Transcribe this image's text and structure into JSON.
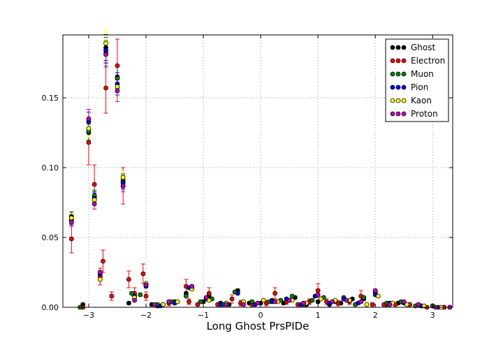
{
  "chart_data": {
    "type": "scatter",
    "title": "",
    "xlabel": "Long Ghost PrsPIDe",
    "ylabel": "",
    "xlim": [
      -3.45,
      3.35
    ],
    "ylim": [
      0,
      0.195
    ],
    "xticks": [
      -3,
      -2,
      -1,
      0,
      1,
      2,
      3
    ],
    "xtick_labels": [
      "−3",
      "−2",
      "−1",
      "0",
      "1",
      "2",
      "3"
    ],
    "yticks": [
      0,
      0.05,
      0.1,
      0.15
    ],
    "ytick_labels": [
      "0.00",
      "0.05",
      "0.10",
      "0.15"
    ],
    "grid": true,
    "legend_position": "top-right",
    "series": [
      {
        "name": "Ghost",
        "color": "#000000",
        "points": [
          [
            -3.3,
            0.065
          ],
          [
            -3.1,
            0.002
          ],
          [
            -3.0,
            0.125
          ],
          [
            -2.9,
            0.079
          ],
          [
            -2.8,
            0.025
          ],
          [
            -2.7,
            0.186
          ],
          [
            -2.5,
            0.165
          ],
          [
            -2.4,
            0.091
          ],
          [
            -2.3,
            0.003
          ],
          [
            -2.2,
            0.008
          ],
          [
            -2.0,
            0.016
          ],
          [
            -1.9,
            0.002
          ],
          [
            -1.7,
            0.002
          ],
          [
            -1.5,
            0.004
          ],
          [
            -1.3,
            0.01
          ],
          [
            -1.2,
            0.014
          ],
          [
            -1.0,
            0.004
          ],
          [
            -0.9,
            0.008
          ],
          [
            -0.7,
            0.003
          ],
          [
            -0.55,
            0.002
          ],
          [
            -0.4,
            0.012
          ],
          [
            -0.2,
            0.003
          ],
          [
            0.0,
            0.003
          ],
          [
            0.2,
            0.005
          ],
          [
            0.4,
            0.003
          ],
          [
            0.6,
            0.007
          ],
          [
            0.8,
            0.002
          ],
          [
            1.0,
            0.004
          ],
          [
            1.2,
            0.002
          ],
          [
            1.4,
            0.003
          ],
          [
            1.6,
            0.006
          ],
          [
            1.8,
            0.006
          ],
          [
            2.0,
            0.011
          ],
          [
            2.2,
            0.002
          ],
          [
            2.4,
            0.003
          ],
          [
            2.6,
            0.002
          ],
          [
            2.8,
            0.001
          ],
          [
            3.0,
            0.001
          ],
          [
            3.2,
            0.0
          ]
        ]
      },
      {
        "name": "Electron",
        "color": "#ff0000",
        "points": [
          [
            -3.3,
            0.049
          ],
          [
            -3.1,
            0.0
          ],
          [
            -3.0,
            0.118
          ],
          [
            -2.9,
            0.088
          ],
          [
            -2.8,
            0.022
          ],
          [
            -2.75,
            0.033
          ],
          [
            -2.7,
            0.157
          ],
          [
            -2.6,
            0.008
          ],
          [
            -2.5,
            0.173
          ],
          [
            -2.4,
            0.087
          ],
          [
            -2.3,
            0.02
          ],
          [
            -2.2,
            0.01
          ],
          [
            -2.05,
            0.024
          ],
          [
            -2.0,
            0.008
          ],
          [
            -1.8,
            0.001
          ],
          [
            -1.6,
            0.003
          ],
          [
            -1.3,
            0.015
          ],
          [
            -1.25,
            0.004
          ],
          [
            -1.1,
            0.002
          ],
          [
            -0.9,
            0.01
          ],
          [
            -0.75,
            0.002
          ],
          [
            -0.5,
            0.006
          ],
          [
            -0.35,
            0.003
          ],
          [
            -0.15,
            0.002
          ],
          [
            0.1,
            0.003
          ],
          [
            0.25,
            0.01
          ],
          [
            0.45,
            0.004
          ],
          [
            0.65,
            0.002
          ],
          [
            0.85,
            0.004
          ],
          [
            1.0,
            0.012
          ],
          [
            1.15,
            0.004
          ],
          [
            1.35,
            0.003
          ],
          [
            1.55,
            0.004
          ],
          [
            1.75,
            0.008
          ],
          [
            1.95,
            0.002
          ],
          [
            2.15,
            0.002
          ],
          [
            2.35,
            0.002
          ],
          [
            2.6,
            0.002
          ],
          [
            2.9,
            0.0
          ],
          [
            3.2,
            0.0
          ]
        ]
      },
      {
        "name": "Muon",
        "color": "#008000",
        "points": [
          [
            -3.3,
            0.063
          ],
          [
            -3.15,
            0.0
          ],
          [
            -3.0,
            0.126
          ],
          [
            -2.9,
            0.08
          ],
          [
            -2.8,
            0.024
          ],
          [
            -2.7,
            0.182
          ],
          [
            -2.5,
            0.164
          ],
          [
            -2.4,
            0.09
          ],
          [
            -2.25,
            0.01
          ],
          [
            -2.1,
            0.009
          ],
          [
            -2.0,
            0.016
          ],
          [
            -1.8,
            0.002
          ],
          [
            -1.55,
            0.004
          ],
          [
            -1.3,
            0.008
          ],
          [
            -1.05,
            0.004
          ],
          [
            -0.85,
            0.006
          ],
          [
            -0.65,
            0.002
          ],
          [
            -0.45,
            0.011
          ],
          [
            -0.15,
            0.004
          ],
          [
            0.15,
            0.004
          ],
          [
            0.35,
            0.005
          ],
          [
            0.55,
            0.008
          ],
          [
            0.75,
            0.002
          ],
          [
            0.9,
            0.005
          ],
          [
            1.1,
            0.007
          ],
          [
            1.3,
            0.004
          ],
          [
            1.45,
            0.007
          ],
          [
            1.65,
            0.002
          ],
          [
            1.8,
            0.007
          ],
          [
            2.0,
            0.01
          ],
          [
            2.2,
            0.003
          ],
          [
            2.45,
            0.004
          ],
          [
            2.7,
            0.001
          ],
          [
            3.0,
            0.001
          ],
          [
            3.3,
            0.0
          ]
        ]
      },
      {
        "name": "Pion",
        "color": "#0000ff",
        "points": [
          [
            -3.3,
            0.062
          ],
          [
            -3.0,
            0.133
          ],
          [
            -2.9,
            0.078
          ],
          [
            -2.8,
            0.024
          ],
          [
            -2.7,
            0.184
          ],
          [
            -2.5,
            0.16
          ],
          [
            -2.4,
            0.089
          ],
          [
            -2.2,
            0.008
          ],
          [
            -2.0,
            0.015
          ],
          [
            -1.75,
            0.001
          ],
          [
            -1.5,
            0.003
          ],
          [
            -1.25,
            0.014
          ],
          [
            -0.95,
            0.006
          ],
          [
            -0.7,
            0.002
          ],
          [
            -0.4,
            0.01
          ],
          [
            -0.1,
            0.002
          ],
          [
            0.2,
            0.004
          ],
          [
            0.45,
            0.006
          ],
          [
            0.7,
            0.002
          ],
          [
            0.95,
            0.008
          ],
          [
            1.2,
            0.003
          ],
          [
            1.45,
            0.006
          ],
          [
            1.7,
            0.003
          ],
          [
            2.0,
            0.009
          ],
          [
            2.25,
            0.003
          ],
          [
            2.5,
            0.003
          ],
          [
            2.8,
            0.001
          ],
          [
            3.1,
            0.0
          ]
        ]
      },
      {
        "name": "Kaon",
        "color": "#ffff00",
        "points": [
          [
            -3.3,
            0.064
          ],
          [
            -3.0,
            0.128
          ],
          [
            -2.9,
            0.077
          ],
          [
            -2.8,
            0.02
          ],
          [
            -2.7,
            0.189
          ],
          [
            -2.5,
            0.158
          ],
          [
            -2.4,
            0.093
          ],
          [
            -2.2,
            0.007
          ],
          [
            -2.0,
            0.017
          ],
          [
            -1.7,
            0.002
          ],
          [
            -1.45,
            0.004
          ],
          [
            -1.2,
            0.013
          ],
          [
            -0.9,
            0.005
          ],
          [
            -0.6,
            0.003
          ],
          [
            -0.3,
            0.004
          ],
          [
            0.05,
            0.005
          ],
          [
            0.3,
            0.004
          ],
          [
            0.55,
            0.005
          ],
          [
            0.8,
            0.003
          ],
          [
            1.05,
            0.006
          ],
          [
            1.3,
            0.005
          ],
          [
            1.55,
            0.005
          ],
          [
            1.85,
            0.002
          ],
          [
            2.05,
            0.008
          ],
          [
            2.3,
            0.003
          ],
          [
            2.55,
            0.002
          ],
          [
            2.85,
            0.001
          ],
          [
            3.15,
            0.0
          ]
        ]
      },
      {
        "name": "Proton",
        "color": "#bf00bf",
        "points": [
          [
            -3.3,
            0.061
          ],
          [
            -3.0,
            0.135
          ],
          [
            -2.9,
            0.074
          ],
          [
            -2.8,
            0.025
          ],
          [
            -2.7,
            0.181
          ],
          [
            -2.5,
            0.155
          ],
          [
            -2.4,
            0.087
          ],
          [
            -2.2,
            0.005
          ],
          [
            -2.0,
            0.016
          ],
          [
            -1.85,
            0.002
          ],
          [
            -1.6,
            0.004
          ],
          [
            -1.2,
            0.015
          ],
          [
            -0.95,
            0.007
          ],
          [
            -0.6,
            0.002
          ],
          [
            -0.3,
            0.002
          ],
          [
            -0.05,
            0.003
          ],
          [
            0.25,
            0.004
          ],
          [
            0.5,
            0.005
          ],
          [
            0.75,
            0.003
          ],
          [
            1.0,
            0.009
          ],
          [
            1.25,
            0.004
          ],
          [
            1.5,
            0.005
          ],
          [
            1.75,
            0.004
          ],
          [
            2.0,
            0.012
          ],
          [
            2.25,
            0.002
          ],
          [
            2.5,
            0.004
          ],
          [
            2.75,
            0.002
          ],
          [
            3.05,
            0.0
          ],
          [
            3.3,
            0.0
          ]
        ]
      }
    ],
    "errors": {
      "Electron": [
        0.01,
        0.0,
        0.016,
        0.014,
        0.006,
        0.008,
        0.018,
        0.003,
        0.019,
        0.013,
        0.006,
        0.004,
        0.007,
        0.003,
        0.001,
        0.002,
        0.005,
        0.002,
        0.001,
        0.004,
        0.001,
        0.003,
        0.002,
        0.001,
        0.002,
        0.004,
        0.002,
        0.001,
        0.002,
        0.005,
        0.002,
        0.002,
        0.002,
        0.004,
        0.001,
        0.001,
        0.001,
        0.001,
        0.0,
        0.0
      ]
    }
  }
}
